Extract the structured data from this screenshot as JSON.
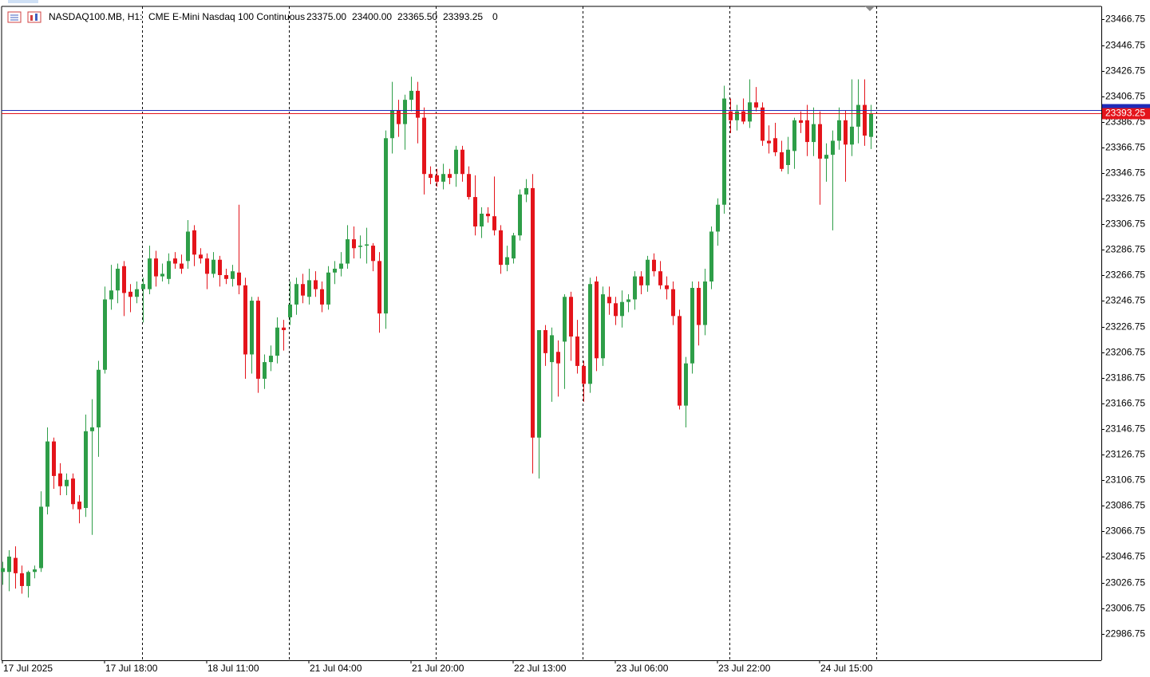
{
  "chart_data": {
    "type": "candlestick",
    "header": {
      "symbol": "NASDAQ100.MB, H1:",
      "description": "CME E-Mini Nasdaq 100 Continuous",
      "ohlc": [
        "23375.00",
        "23400.00",
        "23365.50",
        "23393.25"
      ],
      "volume": "0"
    },
    "categories": [
      "17 Jul 2025",
      null,
      null,
      null,
      null,
      null,
      null,
      null,
      null,
      null,
      null,
      null,
      null,
      null,
      null,
      null,
      "17 Jul 18:00",
      null,
      null,
      null,
      null,
      null,
      null,
      null,
      null,
      null,
      null,
      null,
      null,
      null,
      null,
      null,
      "18 Jul 11:00",
      null,
      null,
      null,
      null,
      null,
      null,
      null,
      null,
      null,
      null,
      null,
      null,
      null,
      null,
      null,
      "21 Jul 04:00",
      null,
      null,
      null,
      null,
      null,
      null,
      null,
      null,
      null,
      null,
      null,
      null,
      null,
      null,
      null,
      "21 Jul 20:00",
      null,
      null,
      null,
      null,
      null,
      null,
      null,
      null,
      null,
      null,
      null,
      null,
      null,
      null,
      null,
      "22 Jul 13:00",
      null,
      null,
      null,
      null,
      null,
      null,
      null,
      null,
      null,
      null,
      null,
      null,
      null,
      null,
      null,
      "23 Jul 06:00",
      null,
      null,
      null,
      null,
      null,
      null,
      null,
      null,
      null,
      null,
      null,
      null,
      null,
      null,
      null,
      "23 Jul 22:00",
      null,
      null,
      null,
      null,
      null,
      null,
      null,
      null,
      null,
      null,
      null,
      null,
      null,
      null,
      null,
      "24 Jul 15:00",
      null,
      null,
      null,
      null,
      null,
      null,
      null,
      null
    ],
    "open": [
      23035,
      23035,
      23046,
      23034,
      23024,
      23035,
      23038,
      23086,
      23137,
      23112,
      23102,
      23108,
      23090,
      23085,
      23145,
      23148,
      23193,
      23248,
      23255,
      23274,
      23254,
      23250,
      23256,
      23256,
      23280,
      23266,
      23264,
      23280,
      23276,
      23278,
      23302,
      23283,
      23280,
      23268,
      23279,
      23267,
      23264,
      23269,
      23259,
      23205,
      23247,
      23186,
      23199,
      23204,
      23226,
      23234,
      23244,
      23260,
      23250,
      23263,
      23256,
      23244,
      23269,
      23272,
      23276,
      23295,
      23289,
      23290,
      23290,
      23278,
      23237,
      23374,
      23396,
      23385,
      23404,
      23411,
      23390,
      23346,
      23345,
      23340,
      23346,
      23346,
      23365,
      23346,
      23328,
      23305,
      23315,
      23313,
      23302,
      23275,
      23280,
      23298,
      23330,
      23335,
      23140,
      23224,
      23199,
      23207,
      23215,
      23250,
      23219,
      23196,
      23182,
      23262,
      23202,
      23250,
      23245,
      23235,
      23246,
      23248,
      23266,
      23259,
      23279,
      23270,
      23259,
      23256,
      23235,
      23165,
      23198,
      23257,
      23228,
      23262,
      23301,
      23322,
      23395,
      23388,
      23395,
      23387,
      23402,
      23398,
      23372,
      23374,
      23363,
      23353,
      23364,
      23388,
      23388,
      23371,
      23385,
      23358,
      23361,
      23372,
      23388,
      23369,
      23383,
      23400,
      23375
    ],
    "high": [
      23043,
      23052,
      23055,
      23040,
      23036,
      23040,
      23098,
      23148,
      23140,
      23120,
      23112,
      23112,
      23095,
      23158,
      23170,
      23200,
      23258,
      23275,
      23276,
      23278,
      23260,
      23262,
      23265,
      23290,
      23286,
      23276,
      23284,
      23285,
      23283,
      23310,
      23306,
      23288,
      23284,
      23285,
      23282,
      23272,
      23275,
      23322,
      23265,
      23250,
      23250,
      23205,
      23212,
      23234,
      23232,
      23262,
      23265,
      23268,
      23272,
      23270,
      23262,
      23274,
      23278,
      23285,
      23306,
      23305,
      23298,
      23304,
      23292,
      23285,
      23380,
      23418,
      23404,
      23408,
      23422,
      23418,
      23398,
      23352,
      23350,
      23354,
      23350,
      23368,
      23368,
      23352,
      23345,
      23320,
      23320,
      23344,
      23306,
      23290,
      23300,
      23334,
      23342,
      23346,
      23224,
      23228,
      23226,
      23216,
      23252,
      23254,
      23232,
      23200,
      23265,
      23266,
      23258,
      23258,
      23250,
      23255,
      23252,
      23270,
      23270,
      23282,
      23284,
      23278,
      23266,
      23262,
      23240,
      23203,
      23262,
      23262,
      23272,
      23305,
      23327,
      23415,
      23405,
      23400,
      23405,
      23420,
      23414,
      23402,
      23384,
      23386,
      23372,
      23375,
      23390,
      23395,
      23400,
      23398,
      23395,
      23370,
      23380,
      23398,
      23396,
      23420,
      23420,
      23420,
      23400
    ],
    "low": [
      23025,
      23020,
      23022,
      23018,
      23015,
      23030,
      23035,
      23080,
      23100,
      23095,
      23095,
      23084,
      23073,
      23078,
      23064,
      23125,
      23190,
      23240,
      23245,
      23235,
      23238,
      23245,
      23230,
      23252,
      23258,
      23262,
      23260,
      23272,
      23268,
      23272,
      23274,
      23276,
      23256,
      23265,
      23258,
      23260,
      23258,
      23252,
      23186,
      23190,
      23175,
      23178,
      23192,
      23198,
      23208,
      23228,
      23236,
      23245,
      23244,
      23250,
      23238,
      23240,
      23260,
      23266,
      23272,
      23280,
      23280,
      23276,
      23270,
      23222,
      23225,
      23362,
      23375,
      23365,
      23395,
      23370,
      23330,
      23338,
      23336,
      23334,
      23338,
      23336,
      23340,
      23326,
      23298,
      23296,
      23308,
      23298,
      23268,
      23270,
      23276,
      23294,
      23324,
      23112,
      23108,
      23196,
      23168,
      23172,
      23178,
      23200,
      23190,
      23168,
      23175,
      23192,
      23196,
      23236,
      23228,
      23226,
      23238,
      23240,
      23252,
      23254,
      23266,
      23256,
      23248,
      23228,
      23162,
      23148,
      23190,
      23212,
      23220,
      23256,
      23290,
      23315,
      23378,
      23380,
      23385,
      23382,
      23395,
      23368,
      23362,
      23360,
      23348,
      23346,
      23350,
      23378,
      23360,
      23360,
      23322,
      23340,
      23302,
      23365,
      23340,
      23360,
      23370,
      23368,
      23365.5
    ],
    "close": [
      23038,
      23047,
      23034,
      23024,
      23035,
      23037,
      23086,
      23137,
      23110,
      23102,
      23107,
      23088,
      23084,
      23145,
      23148,
      23193,
      23248,
      23255,
      23272,
      23253,
      23250,
      23256,
      23260,
      23280,
      23266,
      23268,
      23278,
      23276,
      23272,
      23301,
      23283,
      23280,
      23268,
      23279,
      23267,
      23264,
      23270,
      23259,
      23205,
      23247,
      23186,
      23199,
      23204,
      23226,
      23224,
      23244,
      23260,
      23251,
      23263,
      23256,
      23244,
      23269,
      23272,
      23276,
      23295,
      23288,
      23290,
      23291,
      23278,
      23237,
      23374,
      23396,
      23385,
      23404,
      23411,
      23390,
      23346,
      23343,
      23340,
      23346,
      23343,
      23365,
      23346,
      23328,
      23305,
      23315,
      23313,
      23302,
      23275,
      23281,
      23298,
      23330,
      23335,
      23140,
      23224,
      23206,
      23220,
      23198,
      23250,
      23219,
      23196,
      23182,
      23260,
      23202,
      23252,
      23245,
      23235,
      23246,
      23248,
      23266,
      23259,
      23279,
      23270,
      23259,
      23256,
      23235,
      23165,
      23198,
      23257,
      23228,
      23262,
      23301,
      23322,
      23405,
      23388,
      23395,
      23387,
      23402,
      23398,
      23372,
      23370,
      23363,
      23350,
      23365,
      23388,
      23386,
      23371,
      23385,
      23358,
      23361,
      23372,
      23388,
      23369,
      23383,
      23400,
      23376,
      23393.25
    ],
    "up_color": "#2e9e48",
    "down_color": "#e4141b",
    "ylim": [
      22966,
      23477
    ],
    "yticks": [
      23466.75,
      23446.75,
      23426.75,
      23406.75,
      23386.75,
      23366.75,
      23346.75,
      23326.75,
      23306.75,
      23286.75,
      23266.75,
      23246.75,
      23226.75,
      23206.75,
      23186.75,
      23166.75,
      23146.75,
      23126.75,
      23106.75,
      23086.75,
      23066.75,
      23046.75,
      23026.75,
      23006.75,
      22986.75
    ],
    "price_line": 23393.25,
    "price_line_color": "#e4141b",
    "ask_line": 23396,
    "ask_line_color": "#1f2bb8"
  }
}
